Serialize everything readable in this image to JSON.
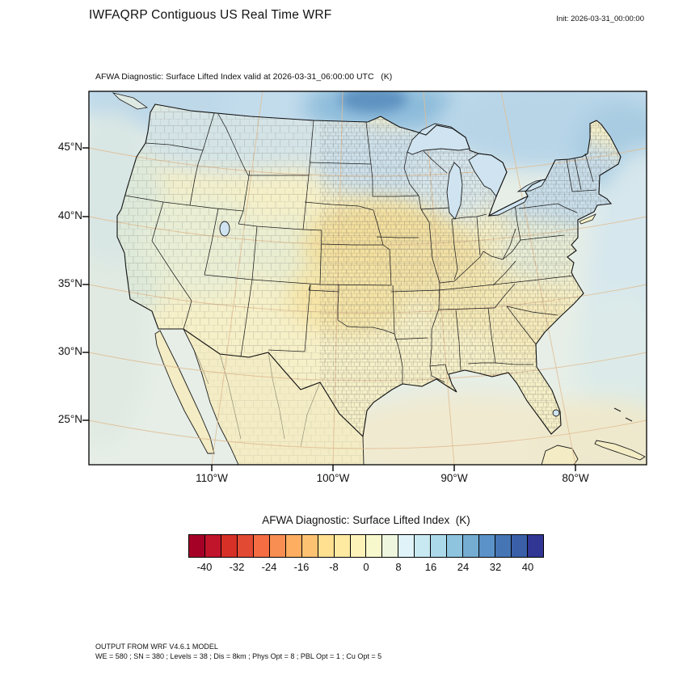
{
  "header": {
    "title": "IWFAQRP Contiguous US Real Time WRF",
    "init_label": "Init: 2026-03-31_00:00:00"
  },
  "map": {
    "subtitle": "AFWA Diagnostic: Surface Lifted Index valid at 2026-03-31_06:00:00 UTC   (K)",
    "lat_ticks": [
      "45°N",
      "40°N",
      "35°N",
      "30°N",
      "25°N"
    ],
    "lon_ticks": [
      "110°W",
      "100°W",
      "90°W",
      "80°W"
    ]
  },
  "colorbar": {
    "title": "AFWA Diagnostic: Surface Lifted Index  (K)",
    "tick_labels": [
      "-40",
      "-32",
      "-24",
      "-16",
      "-8",
      "0",
      "8",
      "16",
      "24",
      "32",
      "40"
    ],
    "colors": [
      "#a50026",
      "#c0152b",
      "#d73027",
      "#e34a33",
      "#f46d43",
      "#f88e52",
      "#fdae61",
      "#fdc373",
      "#fee090",
      "#feeaa1",
      "#fdf3b9",
      "#f8f8cd",
      "#eef7dd",
      "#e0f3f8",
      "#c8e8f2",
      "#abd9e9",
      "#8ec4de",
      "#74add1",
      "#5b93c8",
      "#4575b4",
      "#3a5fa8",
      "#313695"
    ]
  },
  "footer": {
    "line1": "OUTPUT FROM WRF V4.6.1 MODEL",
    "line2": "WE = 580 ; SN = 380 ; Levels = 38 ; Dis = 8km ; Phys Opt = 8 ; PBL Opt = 1 ; Cu Opt = 5"
  },
  "chart_data": {
    "type": "heatmap",
    "title": "AFWA Diagnostic: Surface Lifted Index valid at 2026-03-31_06:00:00 UTC (K)",
    "field": "Surface Lifted Index",
    "units": "K",
    "init_time": "2026-03-31_00:00:00",
    "valid_time": "2026-03-31_06:00:00 UTC",
    "projection": "Lambert conformal map of the contiguous United States with county and state boundaries",
    "xlabel": "longitude",
    "ylabel": "latitude",
    "x_ticks_deg_west": [
      110,
      100,
      90,
      80
    ],
    "y_ticks_deg_north": [
      45,
      40,
      35,
      30,
      25
    ],
    "colorbar_tick_values": [
      -40,
      -32,
      -24,
      -16,
      -8,
      0,
      8,
      16,
      24,
      32,
      40
    ],
    "colorbar_levels": {
      "min": -44,
      "max": 44,
      "step": 4
    },
    "legend_position": "bottom",
    "grid": true,
    "approx_field_values": [
      {
        "region": "southern Canada along northern map edge",
        "lifted_index_K": "12 to 28 (stable, blue shades)"
      },
      {
        "region": "Pacific Northwest and northern Rockies",
        "lifted_index_K": "4 to 12 (pale blue)"
      },
      {
        "region": "Great Lakes and Northeast US",
        "lifted_index_K": "6 to 14 (light blue)"
      },
      {
        "region": "Central Plains (NE/KS/OK/IA/MO/IL)",
        "lifted_index_K": "-6 to 2 (pale yellow)"
      },
      {
        "region": "Texas, Gulf Coast, Southeast US, Mexico",
        "lifted_index_K": "-2 to 6 (cream)"
      },
      {
        "region": "offshore Atlantic and Pacific",
        "lifted_index_K": "4 to 12 (pale blue-green)"
      }
    ]
  }
}
